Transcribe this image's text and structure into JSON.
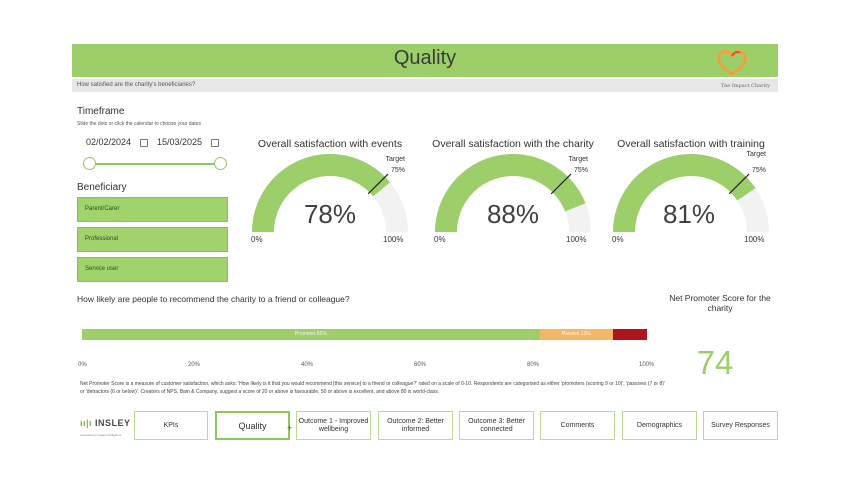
{
  "header": {
    "title": "Quality",
    "subtitle": "How satisfied are the charity's beneficiaries?",
    "brand": "The Impact Charity"
  },
  "timeframe": {
    "title": "Timeframe",
    "help": "Slide the dots or click the calendar to choose your dates",
    "start_date": "02/02/2024",
    "end_date": "15/03/2025"
  },
  "beneficiary": {
    "title": "Beneficiary",
    "options": [
      "Parent/Carer",
      "Professional",
      "Service user"
    ]
  },
  "gauges": [
    {
      "title": "Overall satisfaction with events",
      "value": 78,
      "value_label": "78%",
      "target": 75,
      "target_label": "Target",
      "target_value_label": "75%",
      "min_label": "0%",
      "max_label": "100%"
    },
    {
      "title": "Overall satisfaction with the charity",
      "value": 88,
      "value_label": "88%",
      "target": 75,
      "target_label": "Target",
      "target_value_label": "75%",
      "min_label": "0%",
      "max_label": "100%"
    },
    {
      "title": "Overall satisfaction with training",
      "value": 81,
      "value_label": "81%",
      "target": 75,
      "target_label": "Target",
      "target_value_label": "75%",
      "min_label": "0%",
      "max_label": "100%"
    }
  ],
  "nps": {
    "question": "How likely are people to recommend the charity to a friend or colleague?",
    "score_title": "Net Promoter Score for the charity",
    "score": "74",
    "segments": [
      {
        "name": "Promoter",
        "label": "Promoter 81%",
        "value": 81,
        "color": "#9ccf6a"
      },
      {
        "name": "Passive",
        "label": "Passive 13%",
        "value": 13,
        "color": "#f3b865"
      },
      {
        "name": "Detractor",
        "label": "",
        "value": 6,
        "color": "#b0141e"
      }
    ],
    "axis": [
      "0%",
      "20%",
      "40%",
      "60%",
      "80%",
      "100%"
    ],
    "note": "Net Promoter Score is a measure of customer satisfaction, which asks: 'How likely is it that you would recommend [this service] to a friend or colleague?' rated on a scale of 0-10.  Respondents are categorised as either 'promoters (scoring 9 or 10)', 'passives (7 or 8)' or 'detractors (6 or below)'.  Creators of NPS, Bain & Company, suggest a score of 20 or above is favourable, 50 or above is excellent, and above 80 is world-class."
  },
  "footer": {
    "brand": "INSLEY",
    "tagline": "consultancy impact intelligence",
    "tabs": [
      "KPIs",
      "Quality",
      "Outcome 1 - Improved wellbeing",
      "Outcome 2: Better informed",
      "Outcome 3: Better connected",
      "Comments",
      "Demographics",
      "Survey Responses"
    ],
    "active_tab": "Quality"
  },
  "colors": {
    "accent": "#9ccf6a",
    "passive": "#f3b865",
    "detractor": "#b0141e"
  }
}
